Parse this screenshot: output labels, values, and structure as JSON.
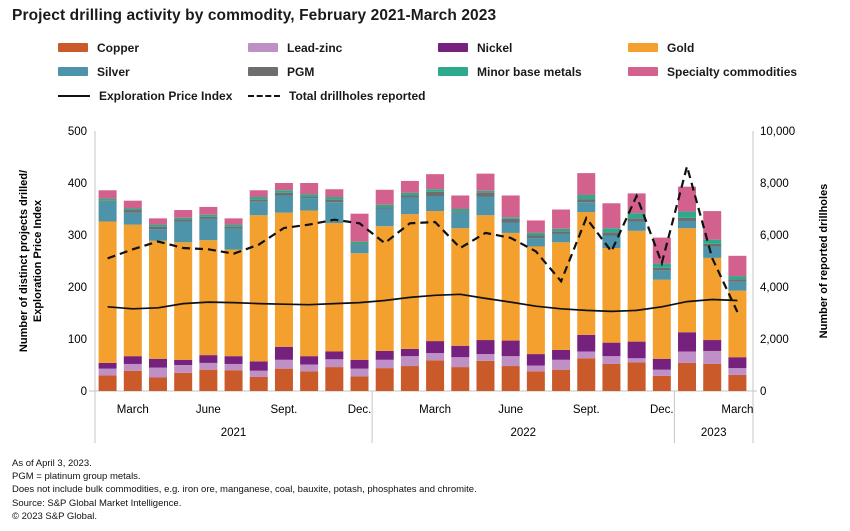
{
  "title": "Project drilling activity by commodity, February 2021-March 2023",
  "legend": {
    "items": [
      {
        "label": "Copper",
        "color": "#CB5A2B"
      },
      {
        "label": "Lead-zinc",
        "color": "#BE90C5"
      },
      {
        "label": "Nickel",
        "color": "#77217F"
      },
      {
        "label": "Gold",
        "color": "#F3A02E"
      },
      {
        "label": "Silver",
        "color": "#4D93A9"
      },
      {
        "label": "PGM",
        "color": "#6E6E6E"
      },
      {
        "label": "Minor base metals",
        "color": "#2FA98C"
      },
      {
        "label": "Specialty commodities",
        "color": "#D2618D"
      }
    ],
    "lines": [
      {
        "label": "Exploration Price Index",
        "style": "solid"
      },
      {
        "label": "Total drillholes reported",
        "style": "dashed"
      }
    ]
  },
  "chart_data": {
    "type": "stacked-bar-with-lines",
    "categories": [
      "Feb 2021",
      "Mar 2021",
      "Apr 2021",
      "May 2021",
      "Jun 2021",
      "Jul 2021",
      "Aug 2021",
      "Sep 2021",
      "Oct 2021",
      "Nov 2021",
      "Dec 2021",
      "Jan 2022",
      "Feb 2022",
      "Mar 2022",
      "Apr 2022",
      "May 2022",
      "Jun 2022",
      "Jul 2022",
      "Aug 2022",
      "Sep 2022",
      "Oct 2022",
      "Nov 2022",
      "Dec 2022",
      "Jan 2023",
      "Feb 2023",
      "Mar 2023"
    ],
    "series": [
      {
        "name": "Copper",
        "color": "#CB5A2B",
        "values": [
          30,
          39,
          26,
          35,
          41,
          40,
          27,
          43,
          38,
          46,
          28,
          44,
          48,
          59,
          46,
          58,
          48,
          38,
          41,
          63,
          52,
          55,
          29,
          54,
          52,
          31
        ]
      },
      {
        "name": "Lead-zinc",
        "color": "#BE90C5",
        "values": [
          13,
          13,
          19,
          15,
          13,
          12,
          12,
          17,
          13,
          15,
          15,
          16,
          19,
          14,
          19,
          13,
          19,
          11,
          19,
          13,
          15,
          8,
          12,
          22,
          25,
          13
        ]
      },
      {
        "name": "Nickel",
        "color": "#77217F",
        "values": [
          11,
          15,
          17,
          10,
          15,
          15,
          18,
          25,
          16,
          15,
          17,
          17,
          14,
          23,
          22,
          27,
          30,
          22,
          19,
          32,
          26,
          32,
          21,
          37,
          21,
          21
        ]
      },
      {
        "name": "Gold",
        "color": "#F3A02E",
        "values": [
          272,
          253,
          227,
          226,
          221,
          205,
          281,
          258,
          280,
          247,
          205,
          240,
          259,
          250,
          226,
          240,
          207,
          207,
          207,
          236,
          182,
          213,
          152,
          200,
          158,
          128
        ]
      },
      {
        "name": "Silver",
        "color": "#4D93A9",
        "values": [
          38,
          23,
          22,
          40,
          41,
          40,
          26,
          33,
          24,
          40,
          15,
          34,
          32,
          29,
          30,
          36,
          20,
          16,
          16,
          19,
          24,
          18,
          18,
          14,
          22,
          17
        ]
      },
      {
        "name": "PGM",
        "color": "#6E6E6E",
        "values": [
          2,
          5,
          5,
          4,
          4,
          4,
          4,
          5,
          2,
          5,
          2,
          2,
          4,
          8,
          2,
          8,
          7,
          5,
          5,
          6,
          6,
          6,
          5,
          6,
          5,
          5
        ]
      },
      {
        "name": "Minor base metals",
        "color": "#2FA98C",
        "values": [
          4,
          3,
          4,
          3,
          4,
          4,
          5,
          5,
          5,
          5,
          5,
          5,
          5,
          5,
          5,
          3,
          3,
          5,
          5,
          8,
          8,
          10,
          8,
          12,
          8,
          6
        ]
      },
      {
        "name": "Specialty commodities",
        "color": "#D2618D",
        "values": [
          16,
          15,
          12,
          15,
          15,
          12,
          13,
          14,
          22,
          15,
          54,
          29,
          23,
          29,
          26,
          33,
          42,
          24,
          37,
          42,
          48,
          38,
          50,
          48,
          55,
          39
        ]
      }
    ],
    "lines": [
      {
        "name": "Exploration Price Index",
        "axis": "left",
        "style": "solid",
        "values": [
          162,
          158,
          160,
          168,
          171,
          170,
          168,
          167,
          166,
          168,
          170,
          174,
          180,
          184,
          186,
          178,
          171,
          163,
          158,
          155,
          153,
          155,
          162,
          172,
          176,
          174
        ]
      },
      {
        "name": "Total drillholes reported",
        "axis": "right",
        "style": "dashed",
        "values": [
          5100,
          5450,
          5750,
          5500,
          5450,
          5280,
          5630,
          6270,
          6400,
          6590,
          6450,
          5690,
          6450,
          6500,
          5500,
          6080,
          5890,
          5370,
          4220,
          6650,
          5370,
          7500,
          4920,
          8640,
          5110,
          3040
        ]
      }
    ],
    "y_left": {
      "title_lines": [
        "Number of distinct projects drilled/",
        "Exploration Price Index"
      ],
      "min": 0,
      "max": 500,
      "ticks": [
        "0",
        "100",
        "200",
        "300",
        "400",
        "500"
      ]
    },
    "y_right": {
      "title": "Number of reported drillholes",
      "min": 0,
      "max": 10000,
      "ticks": [
        "0",
        "2,000",
        "4,000",
        "6,000",
        "8,000",
        "10,000"
      ]
    },
    "x_ticks": [
      {
        "i": 1,
        "label": "March"
      },
      {
        "i": 4,
        "label": "June"
      },
      {
        "i": 7,
        "label": "Sept."
      },
      {
        "i": 10,
        "label": "Dec."
      },
      {
        "i": 13,
        "label": "March"
      },
      {
        "i": 16,
        "label": "June"
      },
      {
        "i": 19,
        "label": "Sept."
      },
      {
        "i": 22,
        "label": "Dec."
      },
      {
        "i": 25,
        "label": "March"
      }
    ],
    "year_groups": [
      {
        "label": "2021",
        "start": 0,
        "end": 10
      },
      {
        "label": "2022",
        "start": 11,
        "end": 22
      },
      {
        "label": "2023",
        "start": 23,
        "end": 25
      }
    ],
    "grid": "off",
    "axis_color": "#c6c6c6",
    "line_color": "#111111"
  },
  "footer": {
    "lines": [
      "As of April 3, 2023.",
      "PGM = platinum group metals.",
      "Does not include bulk commodities, e.g. iron ore, manganese, coal, bauxite, potash, phosphates and chromite.",
      "Source: S&P Global Market Intelligence.",
      "© 2023 S&P Global."
    ]
  }
}
